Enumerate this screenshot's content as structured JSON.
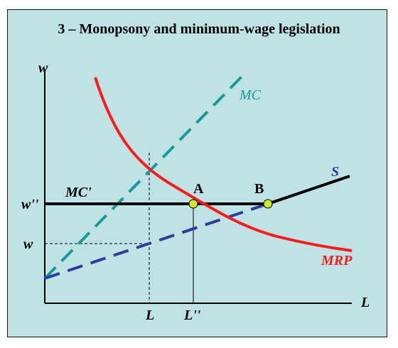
{
  "title": "3 – Monopsony and minimum-wage legislation",
  "axes": {
    "y_label": "w",
    "x_label": "L"
  },
  "curves": {
    "mc": {
      "label": "MC",
      "color": "#1a9a96"
    },
    "mrp": {
      "label": "MRP",
      "color": "#ff1a1a"
    },
    "supply": {
      "label": "S",
      "color": "#2e3c9c"
    },
    "mc_prime": {
      "label": "MC'",
      "color": "#000000"
    }
  },
  "points": {
    "a": "A",
    "b": "B",
    "color": "#ccee22"
  },
  "ticks": {
    "y": [
      "w''",
      "w"
    ],
    "x": [
      "L",
      "L''"
    ]
  },
  "colors": {
    "background": "#bfe2e5",
    "axis": "#000000"
  }
}
